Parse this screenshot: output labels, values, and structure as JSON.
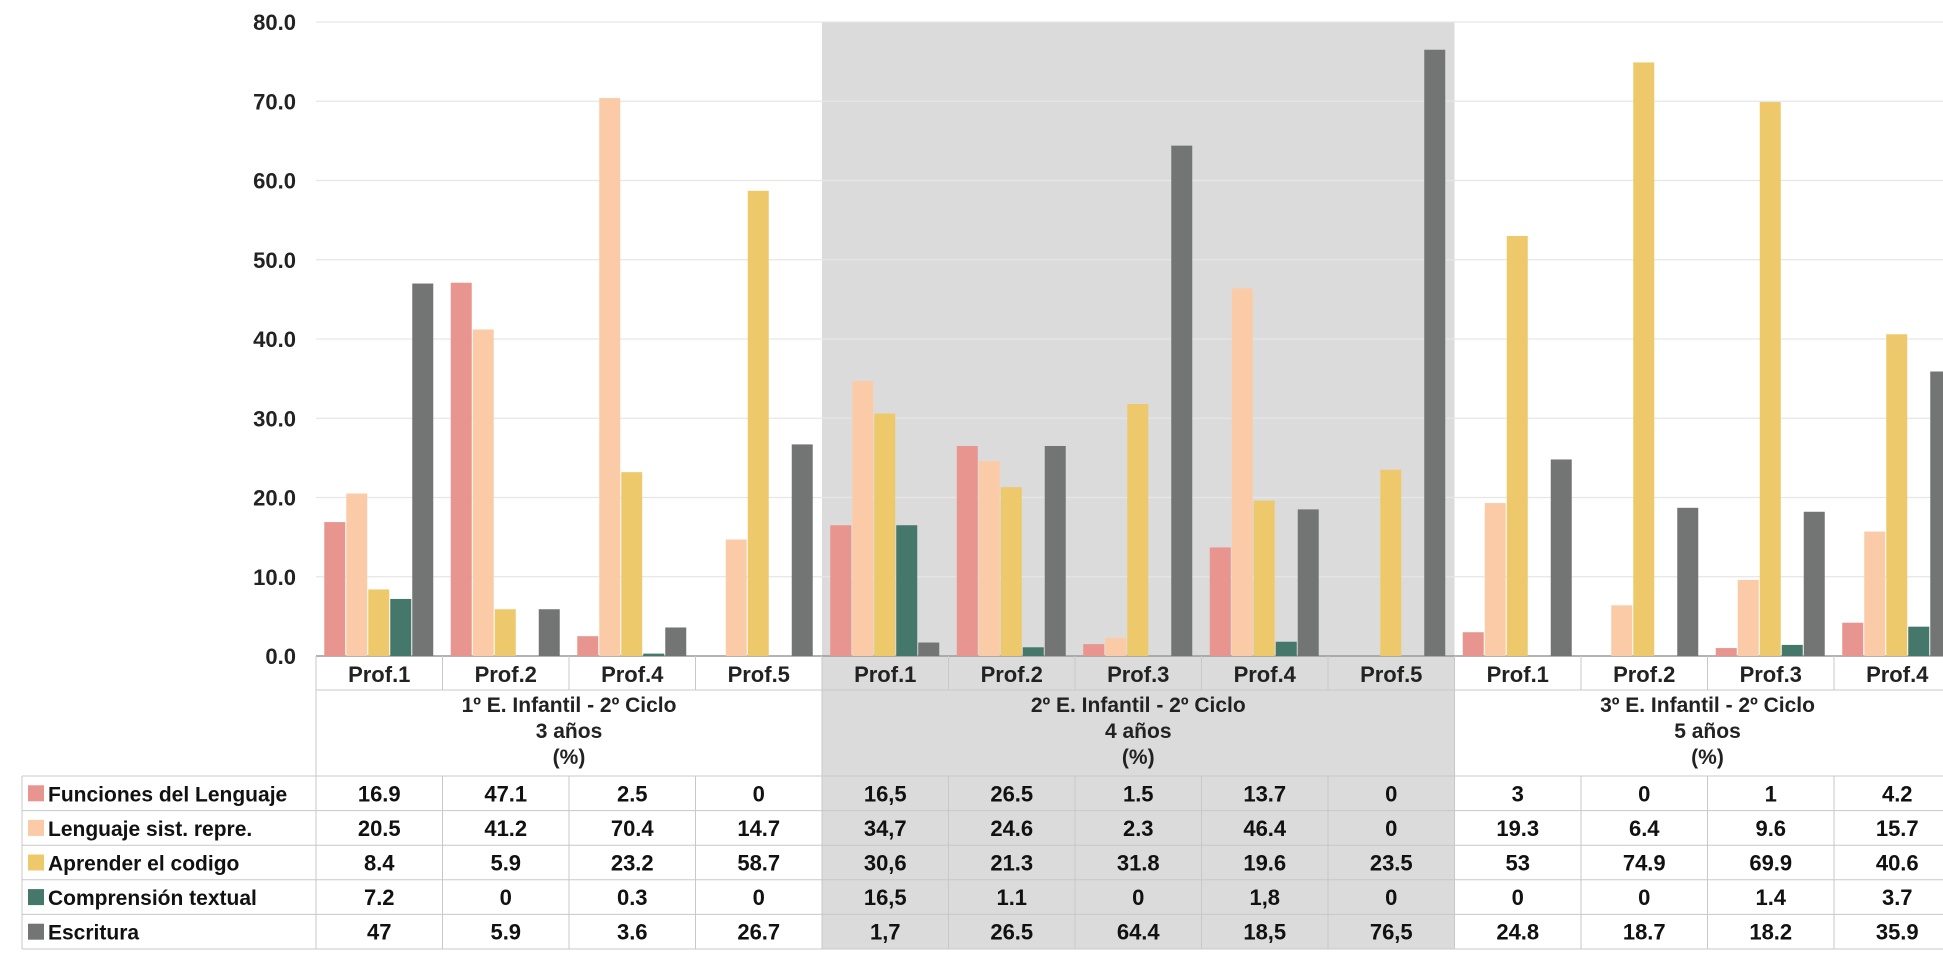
{
  "chart_data": {
    "type": "bar",
    "ylim": [
      0,
      80
    ],
    "yticks": [
      "0.0",
      "10.0",
      "20.0",
      "30.0",
      "40.0",
      "50.0",
      "60.0",
      "70.0",
      "80.0"
    ],
    "grid": true,
    "groups": [
      {
        "label_line1": "1º E. Infantil -  2º Ciclo",
        "label_line2": "3 años",
        "label_line3": "(%)",
        "shaded": false,
        "categories": [
          "Prof.1",
          "Prof.2",
          "Prof.4",
          "Prof.5"
        ]
      },
      {
        "label_line1": "2º E. Infantil -  2º Ciclo",
        "label_line2": "4 años",
        "label_line3": "(%)",
        "shaded": true,
        "categories": [
          "Prof.1",
          "Prof.2",
          "Prof.3",
          "Prof.4",
          "Prof.5"
        ]
      },
      {
        "label_line1": "3º E. Infantil -  2º Ciclo",
        "label_line2": "5 años",
        "label_line3": "(%)",
        "shaded": false,
        "categories": [
          "Prof.1",
          "Prof.2",
          "Prof.3",
          "Prof.4"
        ]
      }
    ],
    "series": [
      {
        "name": "Funciones del Lenguaje",
        "color": "#E8958F",
        "values": [
          16.9,
          47.1,
          2.5,
          0,
          16.5,
          26.5,
          1.5,
          13.7,
          0,
          3,
          0,
          1,
          4.2
        ],
        "labels": [
          "16.9",
          "47.1",
          "2.5",
          "0",
          "16,5",
          "26.5",
          "1.5",
          "13.7",
          "0",
          "3",
          "0",
          "1",
          "4.2"
        ]
      },
      {
        "name": "Lenguaje sist. repre.",
        "color": "#FBCBA8",
        "values": [
          20.5,
          41.2,
          70.4,
          14.7,
          34.7,
          24.6,
          2.3,
          46.4,
          0,
          19.3,
          6.4,
          9.6,
          15.7
        ],
        "labels": [
          "20.5",
          "41.2",
          "70.4",
          "14.7",
          "34,7",
          "24.6",
          "2.3",
          "46.4",
          "0",
          "19.3",
          "6.4",
          "9.6",
          "15.7"
        ]
      },
      {
        "name": "Aprender el codigo",
        "color": "#EDC96B",
        "values": [
          8.4,
          5.9,
          23.2,
          58.7,
          30.6,
          21.3,
          31.8,
          19.6,
          23.5,
          53,
          74.9,
          69.9,
          40.6
        ],
        "labels": [
          "8.4",
          "5.9",
          "23.2",
          "58.7",
          "30,6",
          "21.3",
          "31.8",
          "19.6",
          "23.5",
          "53",
          "74.9",
          "69.9",
          "40.6"
        ]
      },
      {
        "name": "Comprensión textual",
        "color": "#45776B",
        "values": [
          7.2,
          0,
          0.3,
          0,
          16.5,
          1.1,
          0,
          1.8,
          0,
          0,
          0,
          1.4,
          3.7
        ],
        "labels": [
          "7.2",
          "0",
          "0.3",
          "0",
          "16,5",
          "1.1",
          "0",
          "1,8",
          "0",
          "0",
          "0",
          "1.4",
          "3.7"
        ]
      },
      {
        "name": "Escritura",
        "color": "#737575",
        "values": [
          47,
          5.9,
          3.6,
          26.7,
          1.7,
          26.5,
          64.4,
          18.5,
          76.5,
          24.8,
          18.7,
          18.2,
          35.9
        ],
        "labels": [
          "47",
          "5.9",
          "3.6",
          "26.7",
          "1,7",
          "26.5",
          "64.4",
          "18,5",
          "76,5",
          "24.8",
          "18.7",
          "18.2",
          "35.9"
        ]
      }
    ]
  }
}
